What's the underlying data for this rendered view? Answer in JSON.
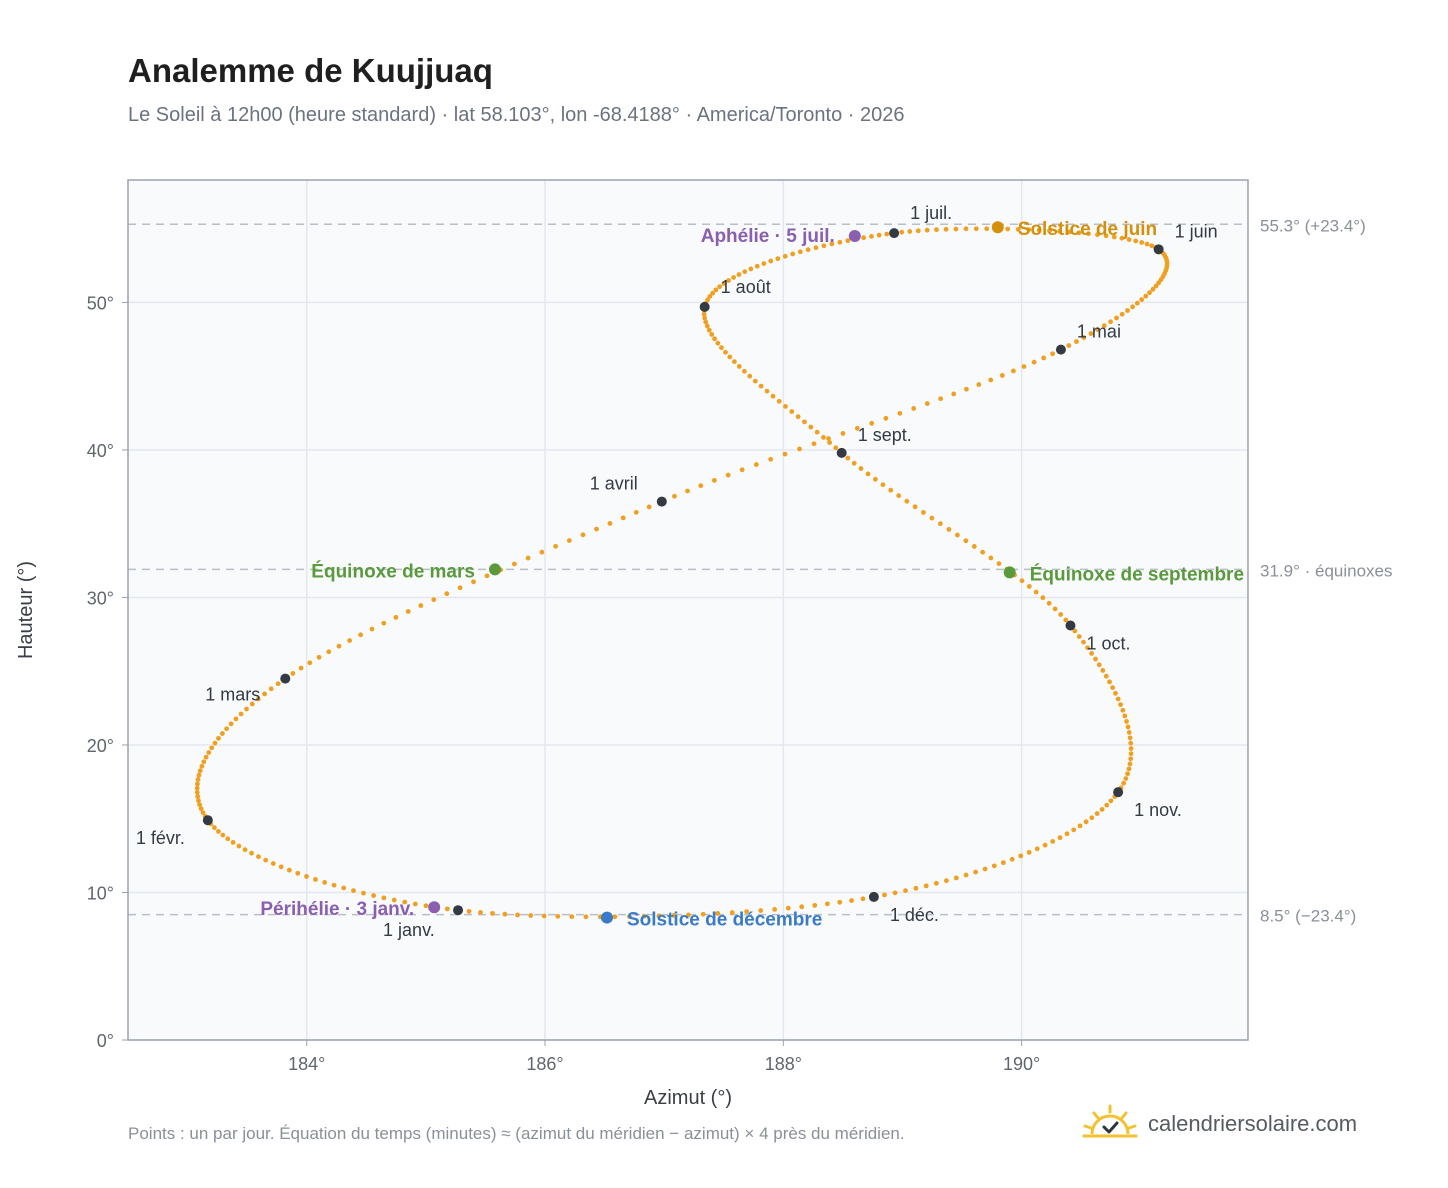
{
  "header": {
    "title": "Analemme de Kuujjuaq",
    "subtitle": "Le Soleil à 12h00 (heure standard) · lat 58.103°, lon -68.4188° · America/Toronto · 2026"
  },
  "footer": {
    "note": "Points : un par jour. Équation du temps (minutes) ≈ (azimut du méridien − azimut) × 4 près du méridien.",
    "brand": "calendriersolaire.com"
  },
  "colors": {
    "curve": "#f0a020",
    "month": "#333a44",
    "solstice_june": "#d4900a",
    "solstice_december": "#3a7bc8",
    "equinox": "#5a9a3c",
    "apsis": "#8a5fb0",
    "ref_line": "#b8bfc8",
    "plot_bg": "#f8fafc",
    "grid": "#e4e8ee"
  },
  "chart_data": {
    "type": "scatter",
    "xlabel": "Azimut (°)",
    "ylabel": "Hauteur (°)",
    "xlim": [
      182.5,
      191.9
    ],
    "ylim": [
      0,
      58.3
    ],
    "x_ticks": [
      184,
      186,
      188,
      190
    ],
    "x_tick_labels": [
      "184°",
      "186°",
      "188°",
      "190°"
    ],
    "y_ticks": [
      0,
      10,
      20,
      30,
      40,
      50
    ],
    "y_tick_labels": [
      "0°",
      "10°",
      "20°",
      "30°",
      "40°",
      "50°"
    ],
    "grid": true,
    "reference_lines": [
      {
        "y": 55.3,
        "label": "55.3° (+23.4°)"
      },
      {
        "y": 31.9,
        "label": "31.9° · équinoxes"
      },
      {
        "y": 8.5,
        "label": "8.5° (−23.4°)"
      }
    ],
    "months": [
      {
        "label": "1 janv.",
        "x": 185.27,
        "y": 8.8
      },
      {
        "label": "1 févr.",
        "x": 183.17,
        "y": 14.9
      },
      {
        "label": "1 mars",
        "x": 183.82,
        "y": 24.5
      },
      {
        "label": "1 avril",
        "x": 186.98,
        "y": 36.5
      },
      {
        "label": "1 mai",
        "x": 190.33,
        "y": 46.8
      },
      {
        "label": "1 juin",
        "x": 191.15,
        "y": 53.6
      },
      {
        "label": "1 juil.",
        "x": 188.93,
        "y": 54.7
      },
      {
        "label": "1 août",
        "x": 187.34,
        "y": 49.7
      },
      {
        "label": "1 sept.",
        "x": 188.49,
        "y": 39.8
      },
      {
        "label": "1 oct.",
        "x": 190.41,
        "y": 28.1
      },
      {
        "label": "1 nov.",
        "x": 190.81,
        "y": 16.8
      },
      {
        "label": "1 déc.",
        "x": 188.76,
        "y": 9.7
      }
    ],
    "events": [
      {
        "label": "Solstice de juin",
        "x": 189.8,
        "y": 55.1,
        "color": "#d4900a"
      },
      {
        "label": "Solstice de décembre",
        "x": 186.52,
        "y": 8.3,
        "color": "#3a7bc8"
      },
      {
        "label": "Équinoxe de mars",
        "x": 185.58,
        "y": 31.9,
        "color": "#5a9a3c"
      },
      {
        "label": "Équinoxe de septembre",
        "x": 189.9,
        "y": 31.7,
        "color": "#5a9a3c"
      },
      {
        "label": "Aphélie · 5 juil.",
        "x": 188.6,
        "y": 54.5,
        "color": "#8a5fb0"
      },
      {
        "label": "Périhélie · 3 janv.",
        "x": 185.07,
        "y": 9.0,
        "color": "#8a5fb0"
      }
    ]
  }
}
